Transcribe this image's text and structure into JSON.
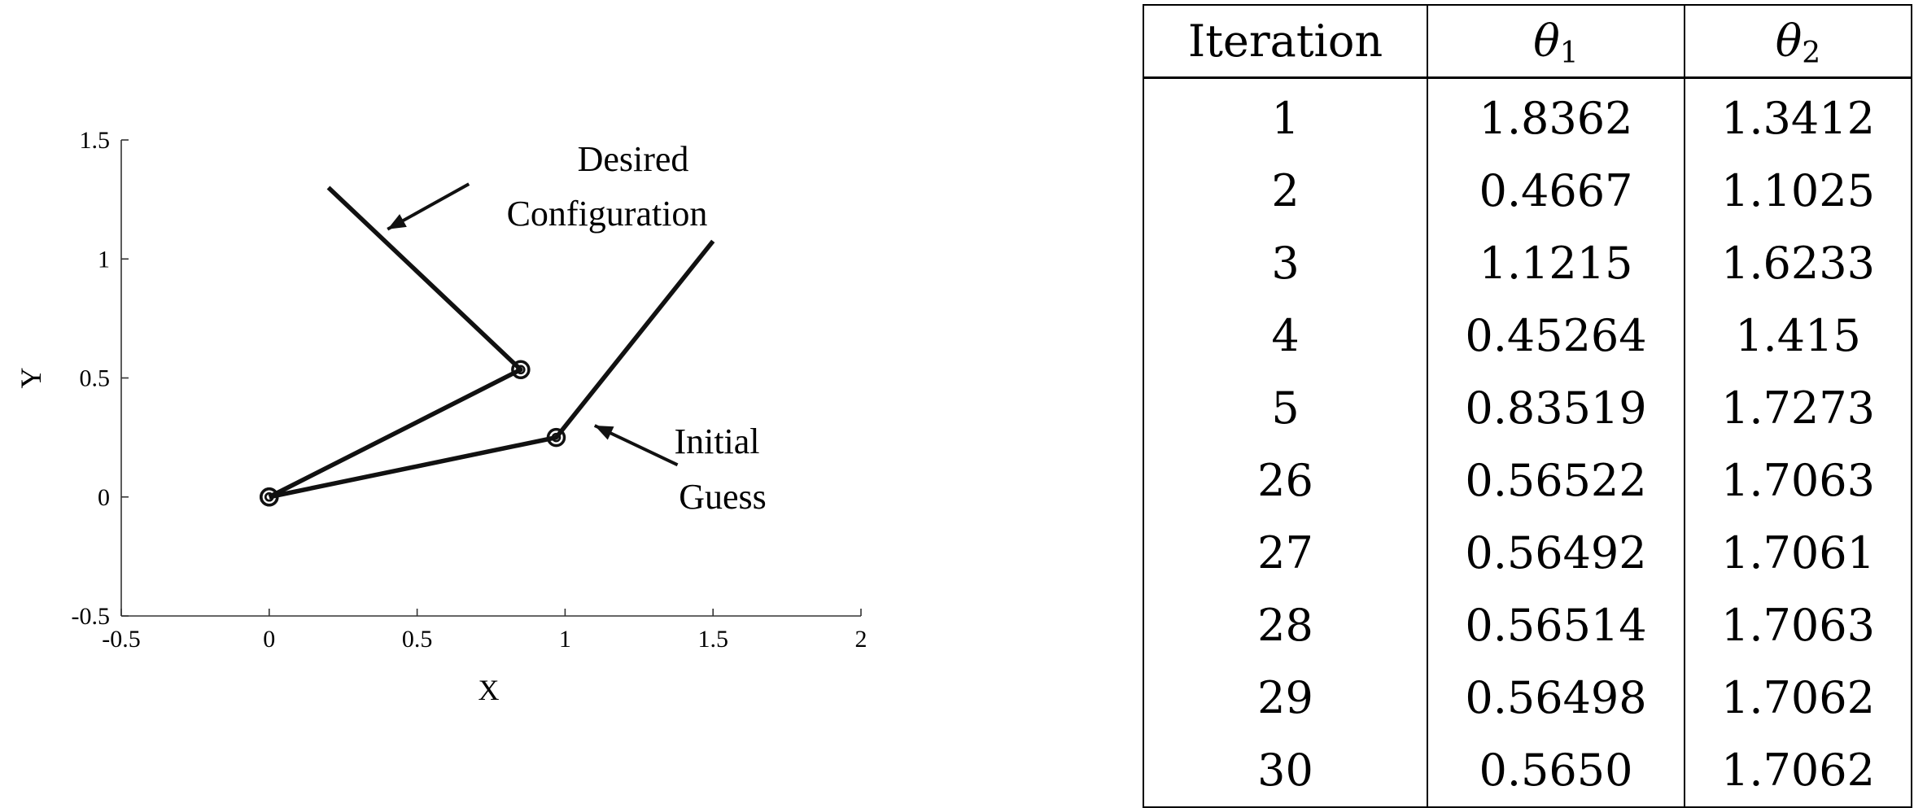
{
  "chart_data": {
    "type": "line",
    "xlabel": "X",
    "ylabel": "Y",
    "xlim": [
      -0.5,
      2
    ],
    "ylim": [
      -0.5,
      1.5
    ],
    "xticks": [
      "-0.5",
      "0",
      "0.5",
      "1",
      "1.5",
      "2"
    ],
    "yticks": [
      "-0.5",
      "0",
      "0.5",
      "1",
      "1.5"
    ],
    "grid": false,
    "series": [
      {
        "x": [
          0,
          0.85,
          0.2
        ],
        "y": [
          0,
          0.535,
          1.3
        ],
        "joints": [
          [
            0,
            0
          ],
          [
            0.85,
            0.535
          ]
        ]
      },
      {
        "x": [
          0,
          0.97,
          1.5
        ],
        "y": [
          0,
          0.25,
          1.075
        ],
        "joints": [
          [
            0,
            0
          ],
          [
            0.97,
            0.25
          ]
        ]
      }
    ],
    "annotations": [
      {
        "lines": [
          "Desired",
          "Configuration"
        ],
        "arrow_from": [
          0.675,
          1.315
        ],
        "arrow_to": [
          0.4,
          1.125
        ]
      },
      {
        "lines": [
          "Initial",
          "Guess"
        ],
        "arrow_from": [
          1.38,
          0.135
        ],
        "arrow_to": [
          1.1,
          0.3
        ]
      }
    ]
  },
  "table": {
    "headers": [
      "Iteration",
      "θ",
      "1",
      "θ",
      "2"
    ],
    "rows": [
      [
        "1",
        "1.8362",
        "1.3412"
      ],
      [
        "2",
        "0.4667",
        "1.1025"
      ],
      [
        "3",
        "1.1215",
        "1.6233"
      ],
      [
        "4",
        "0.45264",
        "1.415"
      ],
      [
        "5",
        "0.83519",
        "1.7273"
      ],
      [
        "26",
        "0.56522",
        "1.7063"
      ],
      [
        "27",
        "0.56492",
        "1.7061"
      ],
      [
        "28",
        "0.56514",
        "1.7063"
      ],
      [
        "29",
        "0.56498",
        "1.7062"
      ],
      [
        "30",
        "0.5650",
        "1.7062"
      ]
    ]
  }
}
